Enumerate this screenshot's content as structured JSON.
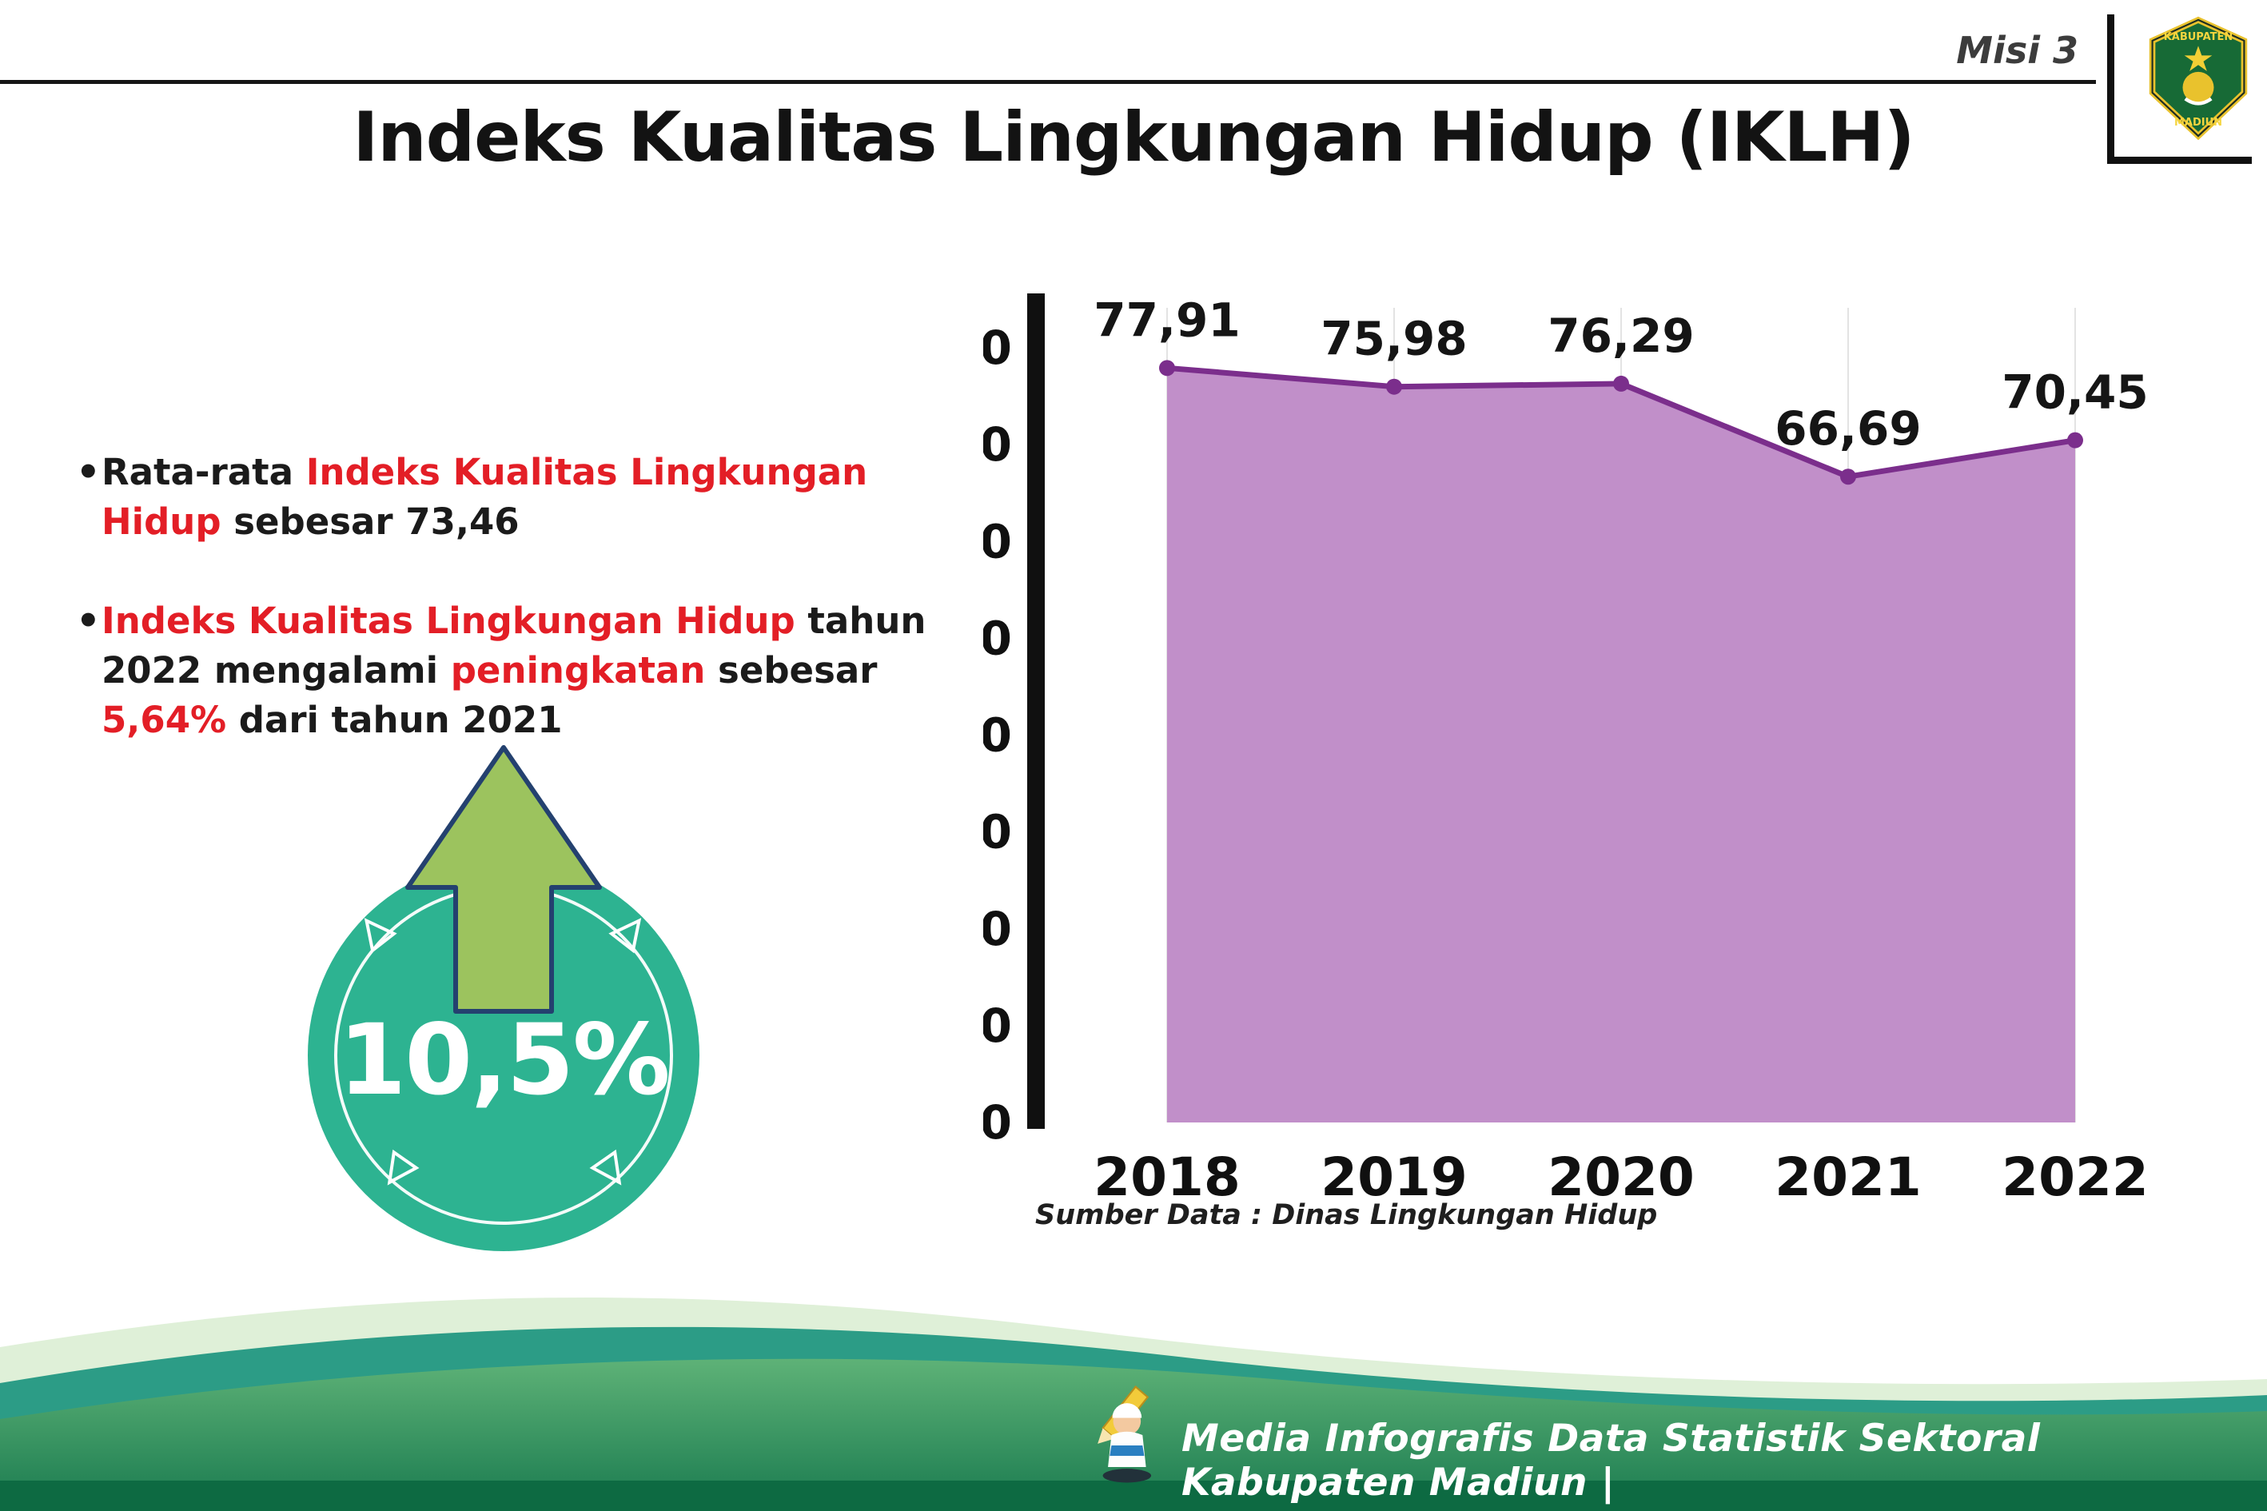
{
  "header": {
    "misi_label": "Misi 3",
    "title": "Indeks Kualitas Lingkungan Hidup (IKLH)"
  },
  "logo": {
    "region": "KABUPATEN",
    "name": "MADIUN"
  },
  "bullets": [
    {
      "segments": [
        {
          "text": "Rata-rata ",
          "red": false
        },
        {
          "text": "Indeks Kualitas Lingkungan Hidup",
          "red": true
        },
        {
          "text": " sebesar 73,46",
          "red": false
        }
      ]
    },
    {
      "segments": [
        {
          "text": "Indeks Kualitas Lingkungan Hidup",
          "red": true
        },
        {
          "text": " tahun 2022 mengalami ",
          "red": false
        },
        {
          "text": "peningkatan",
          "red": true
        },
        {
          "text": " sebesar ",
          "red": false
        },
        {
          "text": "5,64%",
          "red": true
        },
        {
          "text": " dari tahun 2021",
          "red": false
        }
      ]
    }
  ],
  "badge": {
    "value": "10,5%"
  },
  "chart_data": {
    "type": "area",
    "categories": [
      "2018",
      "2019",
      "2020",
      "2021",
      "2022"
    ],
    "values": [
      77.91,
      75.98,
      76.29,
      66.69,
      70.45
    ],
    "value_labels": [
      "77,91",
      "75,98",
      "76,29",
      "66,69",
      "70,45"
    ],
    "title": "Indeks Kualitas Lingkungan Hidup (IKLH)",
    "xlabel": "",
    "ylabel": "",
    "ylim": [
      0,
      80
    ],
    "ytick_step": 10,
    "grid": "vertical-light",
    "legend": "none",
    "line_color": "#7b2e8c",
    "fill_color": "#c18fc9"
  },
  "source_note": "Sumber Data : Dinas Lingkungan Hidup",
  "footer": {
    "text": "Media Infografis Data Statistik Sektoral Kabupaten Madiun |"
  },
  "colors": {
    "accent_red": "#e31e26",
    "badge_teal": "#2db391",
    "arrow_green": "#9cc35e",
    "chart_line": "#7b2e8c",
    "chart_fill": "#c18fc9"
  }
}
